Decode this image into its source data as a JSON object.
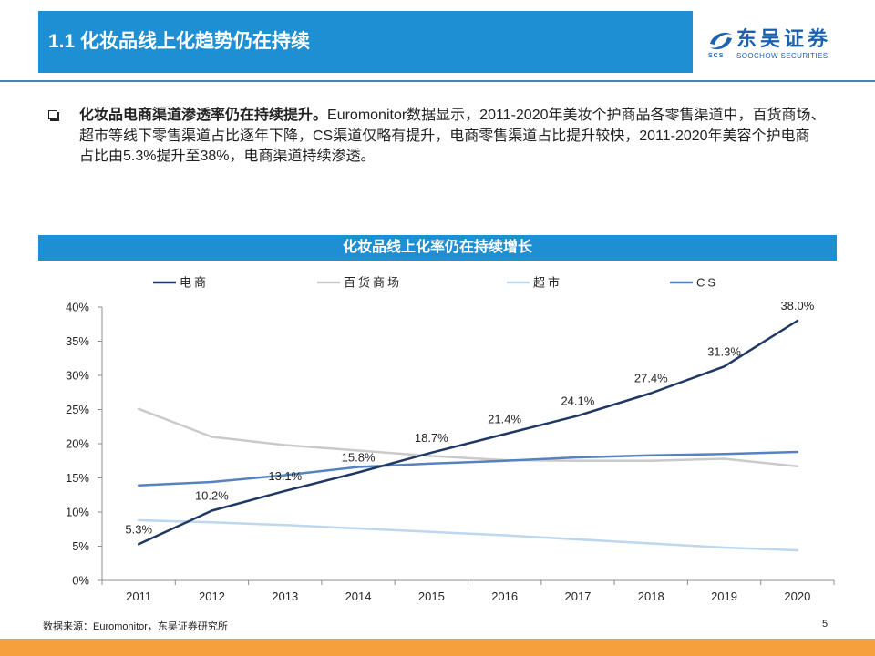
{
  "header": {
    "title": "1.1 化妆品线上化趋势仍在持续"
  },
  "logo": {
    "name_cn": "东吴证券",
    "name_en": "SOOCHOW SECURITIES",
    "mark": "SCS"
  },
  "bullet": {
    "icon": "square-bullet-icon",
    "lead": "化妆品电商渠道渗透率仍在持续提升。",
    "lines": [
      "Euromonitor数据显示，2011-2020年美妆个护商品各零售渠道中，百货商场、",
      "超市等线下零售渠道占比逐年下降，CS渠道仅略有提升，电商零售渠道占比提升较快，2011-2020年美容个护电商",
      "占比由5.3%提升至38%，电商渠道持续渗透。"
    ]
  },
  "chart_data": {
    "type": "line",
    "title": "化妆品线上化率仍在持续增长",
    "categories": [
      "2011",
      "2012",
      "2013",
      "2014",
      "2015",
      "2016",
      "2017",
      "2018",
      "2019",
      "2020"
    ],
    "ylim": [
      0,
      40
    ],
    "yticks": [
      0,
      5,
      10,
      15,
      20,
      25,
      30,
      35,
      40
    ],
    "ytick_labels": [
      "0%",
      "5%",
      "10%",
      "15%",
      "20%",
      "25%",
      "30%",
      "35%",
      "40%"
    ],
    "legend": "top",
    "grid": false,
    "series": [
      {
        "name": "电商",
        "color": "#1f3864",
        "values": [
          5.3,
          10.2,
          13.1,
          15.8,
          18.7,
          21.4,
          24.1,
          27.4,
          31.3,
          38.0
        ],
        "labels": [
          "5.3%",
          "10.2%",
          "13.1%",
          "15.8%",
          "18.7%",
          "21.4%",
          "24.1%",
          "27.4%",
          "31.3%",
          "38.0%"
        ]
      },
      {
        "name": "百货商场",
        "color": "#cacaca",
        "values": [
          25.1,
          21.0,
          19.8,
          19.0,
          18.2,
          17.6,
          17.5,
          17.5,
          17.8,
          16.7
        ]
      },
      {
        "name": "超市",
        "color": "#bdd7ee",
        "values": [
          8.8,
          8.5,
          8.1,
          7.6,
          7.1,
          6.6,
          6.0,
          5.4,
          4.8,
          4.4
        ]
      },
      {
        "name": "CS",
        "color": "#5682bf",
        "values": [
          13.9,
          14.4,
          15.4,
          16.6,
          17.1,
          17.5,
          18.0,
          18.3,
          18.5,
          18.8
        ]
      }
    ]
  },
  "source": "数据来源：Euromonitor，东吴证券研究所",
  "page_number": "5",
  "colors": {
    "header_bar": "#1f8fd3",
    "chart_title_bar": "#1f8fd3",
    "header_rule": "#4f7fb3",
    "footer_bar": "#f5a03c",
    "logo": "#1a62b0"
  }
}
